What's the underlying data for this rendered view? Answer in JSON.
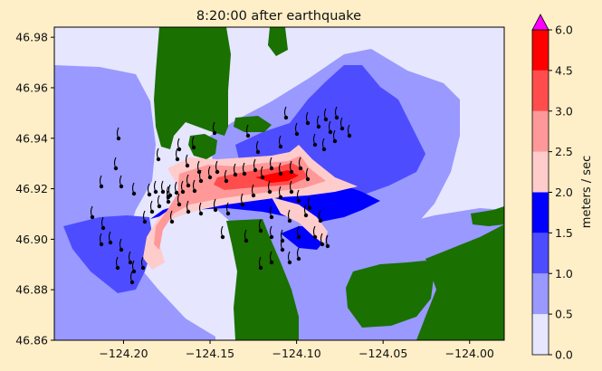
{
  "chart_data": {
    "type": "heatmap",
    "title": "8:20:00 after earthquake",
    "xlim": [
      -124.24,
      -123.98
    ],
    "ylim": [
      46.86,
      46.984
    ],
    "x_ticks": [
      -124.2,
      -124.15,
      -124.1,
      -124.05,
      -124.0
    ],
    "x_tick_labels": [
      "−124.20",
      "−124.15",
      "−124.10",
      "−124.05",
      "−124.00"
    ],
    "y_ticks": [
      46.86,
      46.88,
      46.9,
      46.92,
      46.94,
      46.96,
      46.98
    ],
    "y_tick_labels": [
      "46.86",
      "46.88",
      "46.90",
      "46.92",
      "46.94",
      "46.96",
      "46.98"
    ],
    "colorbar": {
      "label": "meters / sec",
      "levels": [
        0.0,
        0.5,
        1.0,
        1.5,
        2.0,
        2.5,
        3.0,
        4.5,
        6.0
      ],
      "level_labels": [
        "0.0",
        "0.5",
        "1.0",
        "1.5",
        "2.0",
        "2.5",
        "3.0",
        "4.5",
        "6.0"
      ],
      "colors": [
        "#e6e6ff",
        "#9999ff",
        "#4d4dff",
        "#0000ff",
        "#ffcccc",
        "#ff9999",
        "#ff4d4d",
        "#ff0000"
      ],
      "extend_color": "#ff00ff"
    },
    "land_color": "#1a7000",
    "background_color": "#ffefc8"
  }
}
